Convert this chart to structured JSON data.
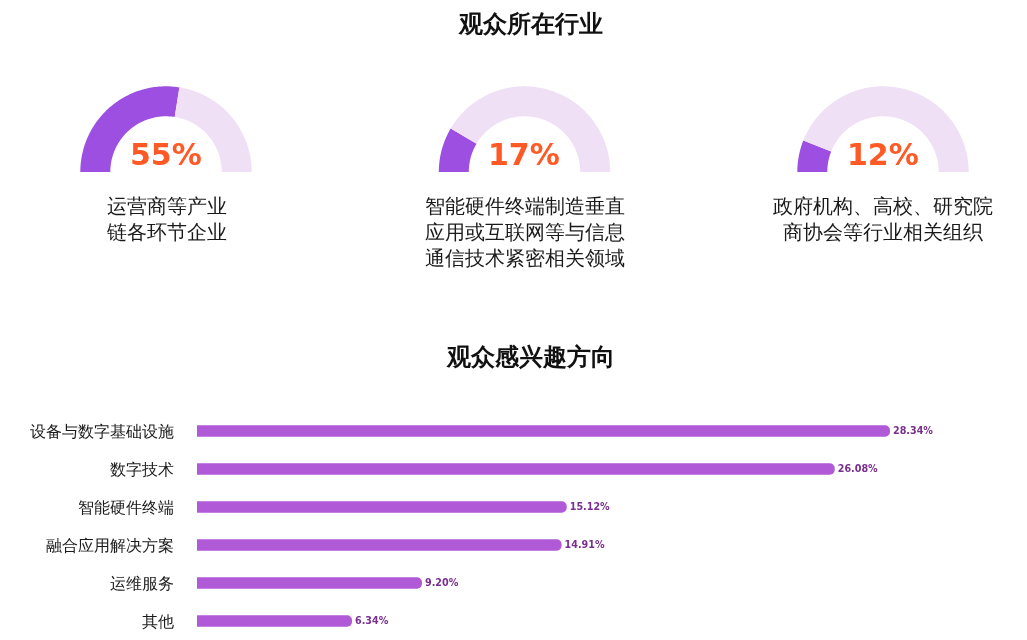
{
  "chart_data": [
    {
      "type": "other",
      "title": "观众所在行业"
    },
    {
      "type": "donut",
      "title": "运营商等产业链各环节企业",
      "categories": [
        null,
        null
      ],
      "values": [
        55,
        45
      ],
      "colors": [
        "#9d4fe2",
        "#f0e0f5"
      ],
      "annotations": [
        "55%"
      ]
    },
    {
      "type": "donut",
      "title": "智能硬件终端制造垂直应用或互联网等与信息通信技术紧密相关领域",
      "categories": [
        null,
        null
      ],
      "values": [
        17,
        83
      ],
      "colors": [
        "#9d4fe2",
        "#f0e0f5"
      ],
      "annotations": [
        "17%"
      ]
    },
    {
      "type": "donut",
      "title": "政府机构、高校、研究院商协会等行业相关组织",
      "categories": [
        null,
        null
      ],
      "values": [
        12,
        88
      ],
      "colors": [
        "#9d4fe2",
        "#f0e0f5"
      ],
      "annotations": [
        "12%"
      ]
    },
    {
      "type": "bar",
      "title": "观众感兴趣方向",
      "orientation": "horizontal",
      "categories": [
        "设备与数字基础设施",
        "数字技术",
        "智能硬件终端",
        "融合应用解决方案",
        "运维服务",
        "其他"
      ],
      "values": [
        28.34,
        26.08,
        15.12,
        14.91,
        9.2,
        6.34
      ],
      "color": "#b05ad8",
      "value_labels": [
        "28.34%",
        "26.08%",
        "15.12%",
        "14.91%",
        "9.20%",
        "6.34%"
      ],
      "tick_labels": "y"
    }
  ]
}
